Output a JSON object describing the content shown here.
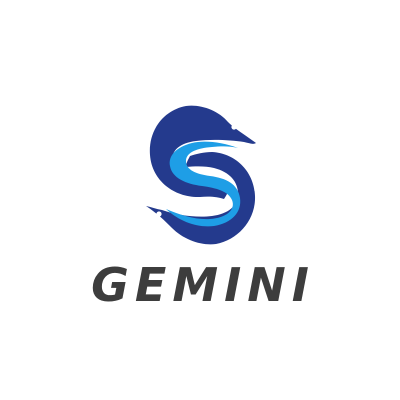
{
  "brand": {
    "name": "GEMINI",
    "icon": "twin-dolphin-s-icon"
  },
  "colors": {
    "background": "#ffffff",
    "primary_dark_blue": "#243a8d",
    "light_blue": "#1e9ee6",
    "wordmark": "#3d3d3d"
  }
}
